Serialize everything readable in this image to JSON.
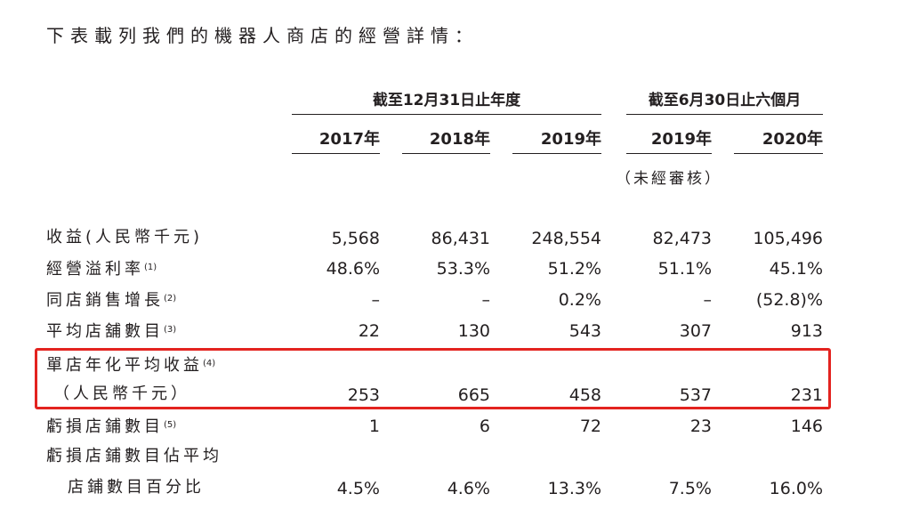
{
  "intro_text": "下表載列我們的機器人商店的經營詳情：",
  "header": {
    "group_year_end": "截至12月31日止年度",
    "group_six_months": "截至6月30日止六個月",
    "years": [
      "2017年",
      "2018年",
      "2019年",
      "2019年",
      "2020年"
    ],
    "unaudited_note": "（未經審核）"
  },
  "rows": [
    {
      "label": "收益(人民幣千元)",
      "note": "",
      "values": [
        "5,568",
        "86,431",
        "248,554",
        "82,473",
        "105,496"
      ]
    },
    {
      "label": "經營溢利率",
      "note": "(1)",
      "values": [
        "48.6%",
        "53.3%",
        "51.2%",
        "51.1%",
        "45.1%"
      ]
    },
    {
      "label": "同店銷售增長",
      "note": "(2)",
      "values": [
        "–",
        "–",
        "0.2%",
        "–",
        "(52.8)%"
      ]
    },
    {
      "label": "平均店舖數目",
      "note": "(3)",
      "values": [
        "22",
        "130",
        "543",
        "307",
        "913"
      ]
    },
    {
      "label": "單店年化平均收益",
      "note": "(4)",
      "label_line2": "（人民幣千元）",
      "values": [
        "253",
        "665",
        "458",
        "537",
        "231"
      ]
    },
    {
      "label": "虧損店鋪數目",
      "note": "(5)",
      "values": [
        "1",
        "6",
        "72",
        "23",
        "146"
      ]
    },
    {
      "label": "虧損店鋪數目佔平均",
      "note": "",
      "label_line2": "店鋪數目百分比",
      "values": [
        "4.5%",
        "4.6%",
        "13.3%",
        "7.5%",
        "16.0%"
      ]
    }
  ],
  "colors": {
    "text": "#231f20",
    "highlight_border": "#e3231f"
  }
}
